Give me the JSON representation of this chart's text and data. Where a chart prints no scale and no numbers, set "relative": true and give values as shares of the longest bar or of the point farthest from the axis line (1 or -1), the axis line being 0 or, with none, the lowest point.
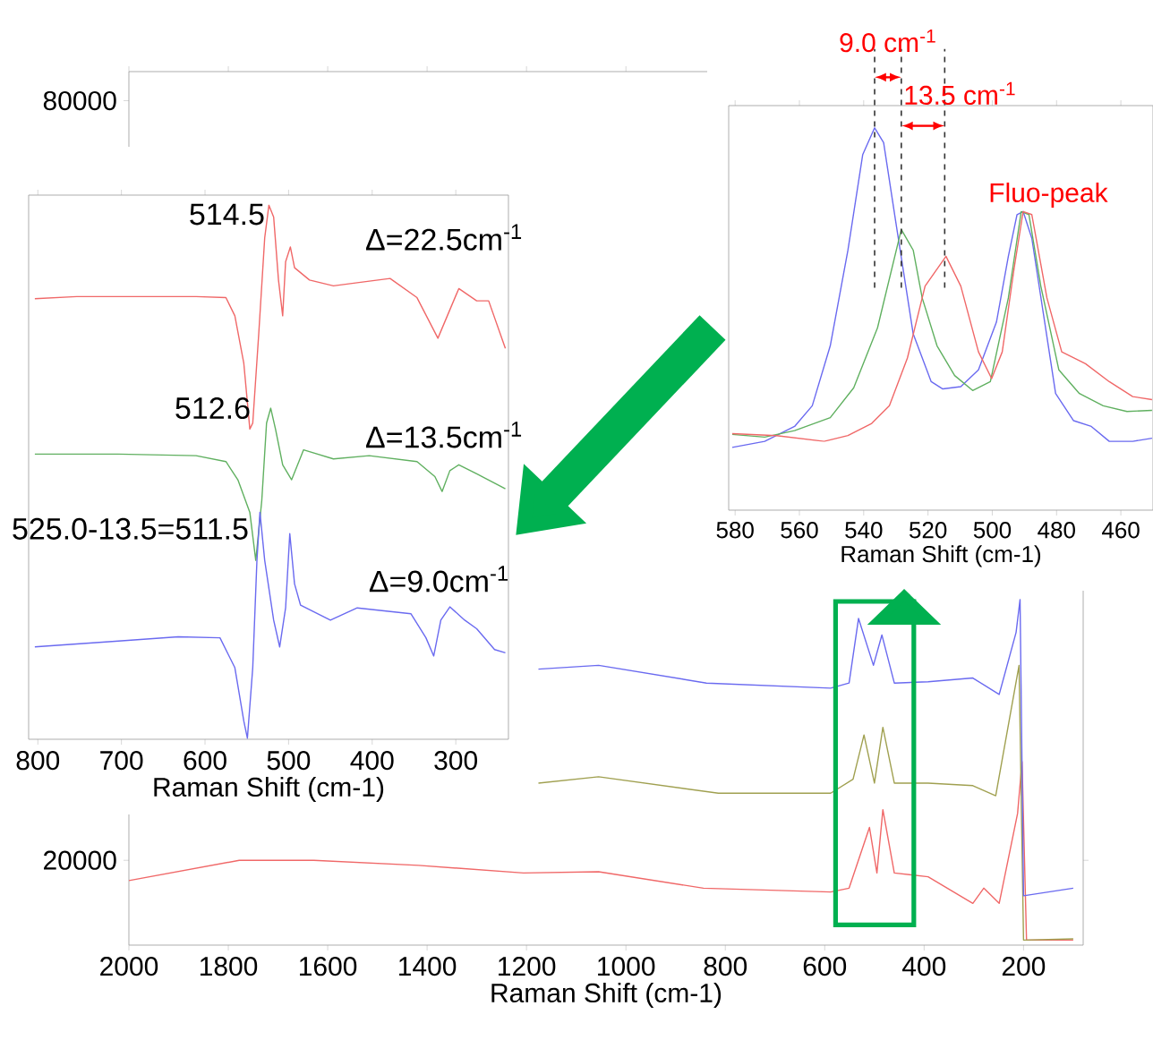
{
  "chart_data": [
    {
      "type": "line",
      "xlabel": "Raman Shift (cm-1)",
      "xlim": [
        2000,
        80
      ],
      "ylim": [
        13300,
        82300
      ],
      "xticks": [
        2000,
        1800,
        1600,
        1400,
        1200,
        1000,
        800,
        600,
        400,
        200
      ],
      "yticks": [
        20000,
        80000
      ],
      "series": [
        {
          "color": "#f06868",
          "x": [
            2000,
            1778,
            1628,
            1417,
            1206,
            1055,
            844,
            588,
            551,
            510,
            495,
            483,
            460,
            392,
            302,
            280,
            249,
            212,
            203,
            194,
            100
          ],
          "values": [
            18400,
            20000,
            20000,
            19600,
            19000,
            19100,
            17800,
            17500,
            17800,
            22600,
            19000,
            24000,
            19000,
            18700,
            16600,
            17800,
            16600,
            23700,
            27800,
            13700,
            13700
          ]
        },
        {
          "color": "#a0a050",
          "x": [
            1176,
            1055,
            814,
            588,
            543,
            521,
            500,
            483,
            460,
            392,
            302,
            256,
            209,
            200,
            100
          ],
          "values": [
            26100,
            26600,
            25300,
            25300,
            26400,
            29900,
            26100,
            30500,
            26100,
            26100,
            25900,
            25100,
            35400,
            13700,
            13800
          ]
        },
        {
          "color": "#6a6af0",
          "x": [
            1176,
            1055,
            838,
            588,
            551,
            532,
            502,
            485,
            460,
            392,
            302,
            249,
            215,
            207,
            200,
            100
          ],
          "values": [
            35100,
            35400,
            34000,
            33600,
            34000,
            39100,
            35400,
            37800,
            34000,
            34100,
            34400,
            33100,
            38000,
            40600,
            17200,
            17800
          ]
        }
      ]
    },
    {
      "type": "line",
      "xlabel": "Raman Shift (cm-1)",
      "relative": true,
      "tick_labels": "x",
      "xlim": [
        811,
        237
      ],
      "xticks": [
        800,
        700,
        600,
        500,
        400,
        300
      ],
      "annotations": [
        {
          "text": "514.5",
          "x": 523.6,
          "y": 1.0
        },
        {
          "text": "512.6",
          "x": 521.4,
          "y": 0.62
        },
        {
          "text": "525.0-13.5=511.5",
          "x": 534.3,
          "y": 0.425
        },
        "Δ=22.5cm$^{-1}$",
        "Δ=13.5cm$^{-1}$",
        "Δ=9.0cm$^{-1}$"
      ],
      "series": [
        {
          "color": "#f06868",
          "x": [
            803.6,
            753.6,
            703.6,
            610.7,
            575,
            564.3,
            553.6,
            546.4,
            542.9,
            535.7,
            528.6,
            523.6,
            517.9,
            512.1,
            507.1,
            503.6,
            497.9,
            492.9,
            475,
            446.4,
            417.9,
            378.6,
            346.4,
            321.4,
            296.4,
            275,
            260.7,
            240.7
          ],
          "values": [
            0.825,
            0.829,
            0.829,
            0.829,
            0.827,
            0.793,
            0.704,
            0.581,
            0.592,
            0.76,
            0.939,
            1.0,
            0.978,
            0.86,
            0.793,
            0.894,
            0.922,
            0.883,
            0.86,
            0.849,
            0.855,
            0.863,
            0.827,
            0.751,
            0.844,
            0.821,
            0.821,
            0.732
          ]
        },
        {
          "color": "#60b060",
          "x": [
            803.6,
            703.6,
            610.7,
            575,
            560.7,
            546.4,
            539.3,
            532.1,
            526.4,
            521.4,
            515.7,
            507.1,
            496.4,
            482.1,
            446.4,
            403.6,
            346.4,
            325,
            316.4,
            307.1,
            296.4,
            275,
            240.7
          ],
          "values": [
            0.534,
            0.534,
            0.531,
            0.52,
            0.486,
            0.425,
            0.335,
            0.447,
            0.592,
            0.62,
            0.581,
            0.514,
            0.486,
            0.542,
            0.525,
            0.531,
            0.52,
            0.492,
            0.464,
            0.503,
            0.514,
            0.497,
            0.469
          ]
        },
        {
          "color": "#6a6af0",
          "x": [
            803.6,
            703.6,
            632.1,
            582.1,
            564.3,
            553.6,
            549.3,
            542.9,
            537.9,
            534.3,
            528.6,
            517.9,
            510.7,
            503.6,
            498.6,
            492.9,
            485.7,
            450,
            417.9,
            353.6,
            335.7,
            326.4,
            317.9,
            307.1,
            289.3,
            275,
            253.6,
            240.7
          ],
          "values": [
            0.173,
            0.184,
            0.192,
            0.19,
            0.134,
            0.034,
            0.002,
            0.134,
            0.335,
            0.425,
            0.335,
            0.223,
            0.173,
            0.246,
            0.385,
            0.291,
            0.251,
            0.223,
            0.246,
            0.235,
            0.19,
            0.156,
            0.223,
            0.248,
            0.223,
            0.207,
            0.168,
            0.162
          ]
        }
      ]
    },
    {
      "type": "line",
      "xlabel": "Raman Shift (cm-1)",
      "relative": true,
      "tick_labels": "x",
      "xlim": [
        582,
        450
      ],
      "xticks": [
        580,
        560,
        540,
        520,
        500,
        480,
        460
      ],
      "annotations": [
        "9.0 cm$^{-1}$",
        "13.5 cm$^{-1}$",
        {
          "text": "Fluo-peak",
          "x": 490.4,
          "y": 0.781
        }
      ],
      "ref_lines": [
        {
          "axis": "x",
          "value": 536.6,
          "color": "#333333",
          "line_style": "dashed"
        },
        {
          "axis": "x",
          "value": 528.3,
          "color": "#333333",
          "line_style": "dashed"
        },
        {
          "axis": "x",
          "value": 514.8,
          "color": "#333333",
          "line_style": "dashed"
        }
      ],
      "series": [
        {
          "color": "#6a6af0",
          "x": [
            580.9,
            570.8,
            561.5,
            556.0,
            550.4,
            544.9,
            540.3,
            536.6,
            533.8,
            530.1,
            524.6,
            519.0,
            515.4,
            509.8,
            504.3,
            498.7,
            495.0,
            492.3,
            490.4,
            487.7,
            484.0,
            480.3,
            474.7,
            469.2,
            463.6,
            456.3,
            450.3
          ],
          "values": [
            0.164,
            0.18,
            0.219,
            0.273,
            0.43,
            0.68,
            0.93,
            1.0,
            0.961,
            0.758,
            0.461,
            0.336,
            0.317,
            0.323,
            0.367,
            0.492,
            0.664,
            0.773,
            0.781,
            0.711,
            0.508,
            0.305,
            0.234,
            0.219,
            0.18,
            0.18,
            0.188
          ]
        },
        {
          "color": "#60b060",
          "x": [
            580.9,
            570.8,
            561.5,
            550.4,
            543.1,
            535.7,
            528.3,
            524.6,
            521.8,
            517.2,
            511.7,
            506.1,
            500.6,
            495.0,
            491.0,
            488.6,
            484.9,
            479.3,
            472.9,
            465.5,
            458.1,
            450.3
          ],
          "values": [
            0.198,
            0.191,
            0.208,
            0.242,
            0.32,
            0.477,
            0.734,
            0.68,
            0.555,
            0.43,
            0.352,
            0.313,
            0.336,
            0.555,
            0.781,
            0.773,
            0.586,
            0.367,
            0.305,
            0.273,
            0.258,
            0.261
          ]
        },
        {
          "color": "#f06868",
          "x": [
            580.9,
            567.1,
            552.3,
            544.9,
            537.5,
            532.0,
            526.4,
            520.9,
            514.4,
            509.8,
            504.3,
            500.2,
            496.9,
            493.2,
            490.4,
            487.7,
            483.0,
            478.4,
            471.0,
            463.6,
            456.3,
            450.3
          ],
          "values": [
            0.2,
            0.195,
            0.18,
            0.195,
            0.227,
            0.273,
            0.398,
            0.586,
            0.664,
            0.586,
            0.414,
            0.344,
            0.414,
            0.633,
            0.781,
            0.773,
            0.555,
            0.414,
            0.383,
            0.336,
            0.297,
            0.289
          ]
        }
      ]
    }
  ]
}
